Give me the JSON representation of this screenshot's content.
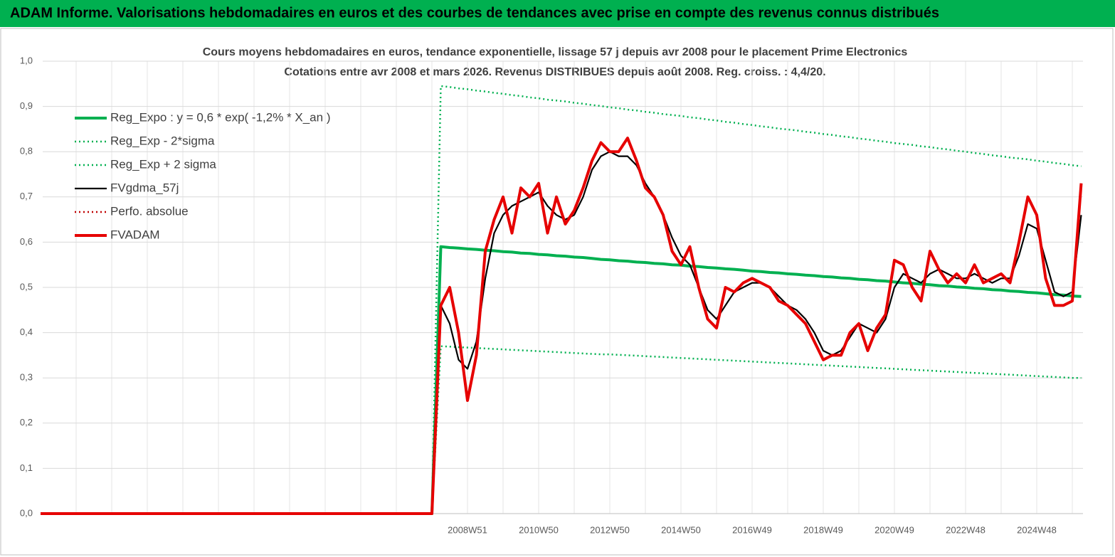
{
  "header": "ADAM Informe. Valorisations hebdomadaires en euros et des courbes de tendances avec prise en compte des revenus connus distribués",
  "chart_data": {
    "type": "line",
    "title": "Cours moyens hebdomadaires en euros, tendance exponentielle, lissage 57 j depuis avr 2008 pour le placement Prime Electronics",
    "subtitle": "Cotations entre avr 2008 et mars 2026. Revenus DISTRIBUES depuis août 2008. Reg. croiss. : 4,4/20.",
    "categories": [
      null,
      null,
      null,
      null,
      null,
      null,
      null,
      null,
      null,
      null,
      null,
      null,
      null,
      null,
      null,
      null,
      null,
      null,
      null,
      null,
      null,
      null,
      null,
      null,
      null,
      null,
      null,
      null,
      null,
      null,
      null,
      null,
      null,
      null,
      null,
      null,
      null,
      null,
      null,
      null,
      null,
      null,
      null,
      null,
      null,
      null,
      null,
      null,
      "2008W51",
      null,
      null,
      null,
      null,
      null,
      null,
      null,
      "2010W50",
      null,
      null,
      null,
      null,
      null,
      null,
      null,
      "2012W50",
      null,
      null,
      null,
      null,
      null,
      null,
      null,
      "2014W50",
      null,
      null,
      null,
      null,
      null,
      null,
      null,
      "2016W49",
      null,
      null,
      null,
      null,
      null,
      null,
      null,
      "2018W49",
      null,
      null,
      null,
      null,
      null,
      null,
      null,
      "2020W49",
      null,
      null,
      null,
      null,
      null,
      null,
      null,
      "2022W48",
      null,
      null,
      null,
      null,
      null,
      null,
      null,
      "2024W48",
      null,
      null,
      null,
      null,
      null
    ],
    "series": [
      {
        "name": "Reg_Expo : y = 0,6 * exp( -1,2% *  X_an )",
        "color": "#00b050",
        "style": "bold",
        "values": [
          0,
          0,
          0,
          0,
          0,
          0,
          0,
          0,
          0,
          0,
          0,
          0,
          0,
          0,
          0,
          0,
          0,
          0,
          0,
          0,
          0,
          0,
          0,
          0,
          0,
          0,
          0,
          0,
          0,
          0,
          0,
          0,
          0,
          0,
          0,
          0,
          0,
          0,
          0,
          0,
          0,
          0,
          0,
          0,
          0,
          0.59,
          0.588,
          0.587,
          0.585,
          0.584,
          0.582,
          0.581,
          0.579,
          0.578,
          0.576,
          0.575,
          0.573,
          0.572,
          0.57,
          0.569,
          0.567,
          0.566,
          0.564,
          0.562,
          0.561,
          0.559,
          0.558,
          0.556,
          0.555,
          0.553,
          0.552,
          0.55,
          0.549,
          0.547,
          0.546,
          0.544,
          0.543,
          0.541,
          0.54,
          0.538,
          0.536,
          0.535,
          0.533,
          0.532,
          0.53,
          0.529,
          0.527,
          0.526,
          0.524,
          0.523,
          0.521,
          0.52,
          0.518,
          0.517,
          0.515,
          0.514,
          0.512,
          0.51,
          0.509,
          0.507,
          0.506,
          0.504,
          0.503,
          0.501,
          0.5,
          0.498,
          0.497,
          0.495,
          0.494,
          0.492,
          0.491,
          0.489,
          0.488,
          0.486,
          0.484,
          0.483,
          0.481,
          0.48
        ]
      },
      {
        "name": "Reg_Exp - 2*sigma",
        "color": "#00b050",
        "style": "dotted",
        "values": [
          0,
          0,
          0,
          0,
          0,
          0,
          0,
          0,
          0,
          0,
          0,
          0,
          0,
          0,
          0,
          0,
          0,
          0,
          0,
          0,
          0,
          0,
          0,
          0,
          0,
          0,
          0,
          0,
          0,
          0,
          0,
          0,
          0,
          0,
          0,
          0,
          0,
          0,
          0,
          0,
          0,
          0,
          0,
          0,
          0,
          0.37,
          0.369,
          0.368,
          0.367,
          0.366,
          0.365,
          0.364,
          0.363,
          0.362,
          0.361,
          0.36,
          0.359,
          0.358,
          0.357,
          0.356,
          0.355,
          0.354,
          0.353,
          0.352,
          0.352,
          0.351,
          0.35,
          0.349,
          0.348,
          0.347,
          0.346,
          0.345,
          0.344,
          0.343,
          0.342,
          0.341,
          0.34,
          0.339,
          0.338,
          0.337,
          0.336,
          0.335,
          0.334,
          0.333,
          0.332,
          0.331,
          0.33,
          0.329,
          0.328,
          0.327,
          0.326,
          0.325,
          0.324,
          0.323,
          0.322,
          0.321,
          0.32,
          0.319,
          0.318,
          0.317,
          0.316,
          0.315,
          0.314,
          0.313,
          0.312,
          0.311,
          0.31,
          0.309,
          0.308,
          0.307,
          0.306,
          0.305,
          0.304,
          0.303,
          0.302,
          0.301,
          0.3,
          0.3
        ]
      },
      {
        "name": "Reg_Exp + 2 sigma",
        "color": "#00b050",
        "style": "dotted",
        "values": [
          0,
          0,
          0,
          0,
          0,
          0,
          0,
          0,
          0,
          0,
          0,
          0,
          0,
          0,
          0,
          0,
          0,
          0,
          0,
          0,
          0,
          0,
          0,
          0,
          0,
          0,
          0,
          0,
          0,
          0,
          0,
          0,
          0,
          0,
          0,
          0,
          0,
          0,
          0,
          0,
          0,
          0,
          0,
          0,
          0,
          0.945,
          0.943,
          0.94,
          0.938,
          0.935,
          0.933,
          0.93,
          0.928,
          0.925,
          0.923,
          0.92,
          0.918,
          0.915,
          0.913,
          0.911,
          0.908,
          0.906,
          0.903,
          0.901,
          0.898,
          0.896,
          0.893,
          0.891,
          0.888,
          0.886,
          0.883,
          0.881,
          0.879,
          0.876,
          0.874,
          0.871,
          0.869,
          0.866,
          0.864,
          0.861,
          0.859,
          0.856,
          0.854,
          0.851,
          0.849,
          0.847,
          0.844,
          0.842,
          0.839,
          0.837,
          0.834,
          0.832,
          0.829,
          0.827,
          0.824,
          0.822,
          0.819,
          0.817,
          0.815,
          0.812,
          0.81,
          0.807,
          0.805,
          0.802,
          0.8,
          0.797,
          0.795,
          0.792,
          0.79,
          0.787,
          0.785,
          0.783,
          0.78,
          0.778,
          0.775,
          0.773,
          0.77,
          0.768
        ]
      },
      {
        "name": "FVgdma_57j",
        "color": "#000000",
        "style": "solid",
        "values": [
          0,
          0,
          0,
          0,
          0,
          0,
          0,
          0,
          0,
          0,
          0,
          0,
          0,
          0,
          0,
          0,
          0,
          0,
          0,
          0,
          0,
          0,
          0,
          0,
          0,
          0,
          0,
          0,
          0,
          0,
          0,
          0,
          0,
          0,
          0,
          0,
          0,
          0,
          0,
          0,
          0,
          0,
          0,
          0,
          0,
          0.46,
          0.42,
          0.34,
          0.32,
          0.38,
          0.52,
          0.62,
          0.66,
          0.68,
          0.69,
          0.7,
          0.71,
          0.68,
          0.66,
          0.65,
          0.66,
          0.7,
          0.76,
          0.79,
          0.8,
          0.79,
          0.79,
          0.77,
          0.73,
          0.7,
          0.66,
          0.61,
          0.57,
          0.55,
          0.5,
          0.45,
          0.43,
          0.46,
          0.49,
          0.5,
          0.51,
          0.51,
          0.5,
          0.48,
          0.46,
          0.45,
          0.43,
          0.4,
          0.36,
          0.35,
          0.36,
          0.39,
          0.42,
          0.41,
          0.4,
          0.43,
          0.5,
          0.53,
          0.52,
          0.51,
          0.53,
          0.54,
          0.53,
          0.52,
          0.52,
          0.53,
          0.52,
          0.51,
          0.52,
          0.52,
          0.57,
          0.64,
          0.63,
          0.56,
          0.49,
          0.48,
          0.49,
          0.66
        ]
      },
      {
        "name": "Perfo. absolue",
        "color": "#c00000",
        "style": "dotted",
        "values": [
          0,
          0,
          0,
          0,
          0,
          0,
          0,
          0,
          0,
          0,
          0,
          0,
          0,
          0,
          0,
          0,
          0,
          0,
          0,
          0,
          0,
          0,
          0,
          0,
          0,
          0,
          0,
          0,
          0,
          0,
          0,
          0,
          0,
          0,
          0,
          0,
          0,
          0,
          0,
          0,
          0,
          0,
          0,
          0,
          0,
          null,
          null,
          null,
          null,
          null,
          null,
          null,
          null,
          null,
          null,
          null,
          null,
          null,
          null,
          null,
          null,
          null,
          null,
          null,
          null,
          null,
          null,
          null,
          null,
          null,
          null,
          null,
          null,
          null,
          null,
          null,
          null,
          null,
          null,
          null,
          null,
          null,
          null,
          null,
          null,
          null,
          null,
          null,
          null,
          null,
          null,
          null,
          null,
          null,
          null,
          null,
          null,
          null,
          null,
          null,
          null,
          null,
          null,
          null,
          null,
          null,
          null,
          null,
          null,
          null,
          null,
          null,
          null,
          null,
          null,
          null,
          null,
          null
        ]
      },
      {
        "name": "FVADAM",
        "color": "#e60000",
        "style": "bold",
        "values": [
          0,
          0,
          0,
          0,
          0,
          0,
          0,
          0,
          0,
          0,
          0,
          0,
          0,
          0,
          0,
          0,
          0,
          0,
          0,
          0,
          0,
          0,
          0,
          0,
          0,
          0,
          0,
          0,
          0,
          0,
          0,
          0,
          0,
          0,
          0,
          0,
          0,
          0,
          0,
          0,
          0,
          0,
          0,
          0,
          0,
          0.46,
          0.5,
          0.4,
          0.25,
          0.35,
          0.58,
          0.65,
          0.7,
          0.62,
          0.72,
          0.7,
          0.73,
          0.62,
          0.7,
          0.64,
          0.67,
          0.72,
          0.78,
          0.82,
          0.8,
          0.8,
          0.83,
          0.78,
          0.72,
          0.7,
          0.66,
          0.58,
          0.55,
          0.59,
          0.5,
          0.43,
          0.41,
          0.5,
          0.49,
          0.51,
          0.52,
          0.51,
          0.5,
          0.47,
          0.46,
          0.44,
          0.42,
          0.38,
          0.34,
          0.35,
          0.35,
          0.4,
          0.42,
          0.36,
          0.41,
          0.44,
          0.56,
          0.55,
          0.5,
          0.47,
          0.58,
          0.54,
          0.51,
          0.53,
          0.51,
          0.55,
          0.51,
          0.52,
          0.53,
          0.51,
          0.6,
          0.7,
          0.66,
          0.52,
          0.46,
          0.46,
          0.47,
          0.73
        ]
      }
    ],
    "ylim": [
      0,
      1
    ],
    "yticks": [
      {
        "value": 0,
        "label": "0,0"
      },
      {
        "value": 0.1,
        "label": "0,1"
      },
      {
        "value": 0.2,
        "label": "0,2"
      },
      {
        "value": 0.3,
        "label": "0,3"
      },
      {
        "value": 0.4,
        "label": "0,4"
      },
      {
        "value": 0.5,
        "label": "0,5"
      },
      {
        "value": 0.6,
        "label": "0,6"
      },
      {
        "value": 0.7,
        "label": "0,7"
      },
      {
        "value": 0.8,
        "label": "0,8"
      },
      {
        "value": 0.9,
        "label": "0,9"
      },
      {
        "value": 1,
        "label": "1,0"
      }
    ],
    "grid": true,
    "legend": "upper left"
  }
}
